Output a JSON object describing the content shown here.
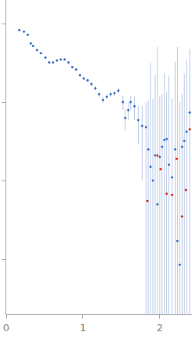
{
  "chart_data": {
    "type": "scatter",
    "log": "y",
    "grid": false,
    "tick_labels": "x",
    "xlim": [
      0,
      2.42
    ],
    "xticks": [
      0,
      1,
      2
    ],
    "ylim": [
      0.0002,
      2
    ],
    "yticks": [
      0.001,
      0.01,
      0.1,
      1
    ],
    "series": [
      {
        "color": "#3a6fc4",
        "marker": "circle",
        "x": [
          0.17,
          0.23,
          0.28,
          0.32,
          0.35,
          0.4,
          0.45,
          0.51,
          0.56,
          0.61,
          0.66,
          0.71,
          0.76,
          0.81,
          0.86,
          0.91,
          0.96,
          1.01,
          1.06,
          1.11,
          1.16,
          1.21,
          1.26,
          1.31,
          1.36,
          1.41,
          1.46,
          1.52,
          1.55,
          1.59,
          1.62,
          1.67,
          1.72,
          1.77,
          1.82,
          1.85,
          1.88,
          1.91,
          1.94,
          1.97,
          2.0,
          2.03,
          2.06,
          2.09,
          2.12,
          2.16,
          2.2,
          2.23,
          2.26,
          2.29,
          2.32,
          2.35,
          2.39
        ],
        "values": [
          0.83,
          0.79,
          0.72,
          0.56,
          0.52,
          0.46,
          0.42,
          0.37,
          0.32,
          0.32,
          0.34,
          0.35,
          0.35,
          0.32,
          0.28,
          0.26,
          0.22,
          0.2,
          0.19,
          0.17,
          0.15,
          0.126,
          0.107,
          0.117,
          0.126,
          0.13,
          0.14,
          0.1,
          0.063,
          0.079,
          0.1,
          0.089,
          0.059,
          0.05,
          0.048,
          0.025,
          0.015,
          0.01,
          0.021,
          0.005,
          0.02,
          0.027,
          0.033,
          0.034,
          0.016,
          0.011,
          0.025,
          0.0017,
          0.00085,
          0.027,
          0.032,
          0.042,
          0.074
        ],
        "errors": [
          0.01,
          0.01,
          0.01,
          0.01,
          0.01,
          0.01,
          0.01,
          0.01,
          0.01,
          0.01,
          0.01,
          0.01,
          0.01,
          0.01,
          0.01,
          0.01,
          0.01,
          0.01,
          0.01,
          0.01,
          0.01,
          0.01,
          0.01,
          0.01,
          0.01,
          0.01,
          0.01,
          0.02,
          0.02,
          0.02,
          0.02,
          0.03,
          0.03,
          0.04,
          0.05,
          0.08,
          0.3,
          0.1,
          0.2,
          0.5,
          0.1,
          0.1,
          0.2,
          0.1,
          0.2,
          0.1,
          0.3,
          0.5,
          0.1,
          0.1,
          0.2,
          0.3,
          0.4
        ]
      },
      {
        "color": "#e0221a",
        "marker": "circle",
        "x": [
          1.84,
          1.97,
          2.01,
          2.09,
          2.16,
          2.22,
          2.29,
          2.34,
          2.39
        ],
        "values": [
          0.0055,
          0.021,
          0.014,
          0.0068,
          0.0066,
          0.019,
          0.0035,
          0.0076,
          0.045
        ]
      }
    ]
  }
}
